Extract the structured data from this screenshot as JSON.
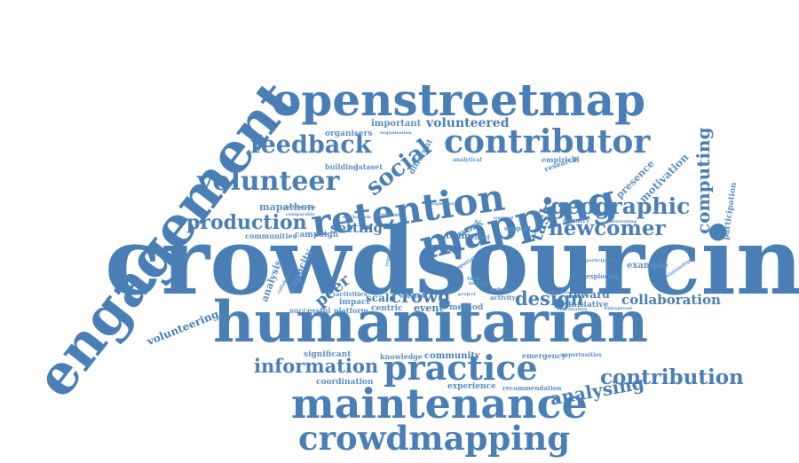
{
  "colors": {
    "word": "#4a7fb5",
    "word_light": "#5b8fc4",
    "background": "#ffffff"
  },
  "words": {
    "crowdsourcing": "crowdsourcing",
    "humanitarian": "humanitarian",
    "engagement": "engagement",
    "openstreetmap": "openstreetmap",
    "maintenance": "maintenance",
    "crowdmapping": "crowdmapping",
    "mapping": "mapping",
    "retention": "retention",
    "contributor": "contributor",
    "practice": "practice",
    "volunteer": "volunteer",
    "feedback": "feedback",
    "social": "social",
    "geographic": "geographic",
    "production": "production",
    "newcomer": "newcomer",
    "information": "information",
    "contribution": "contribution",
    "collaboration": "collaboration",
    "design": "design",
    "crowd": "crowd",
    "computing": "computing",
    "analysing": "analysing",
    "volunteering": "volunteering",
    "peer": "peer",
    "setting": "setting",
    "task": "task",
    "motivation": "motivation",
    "participation": "participation",
    "presence": "presence",
    "volunteered": "volunteered",
    "important": "important",
    "organisers": "organisers",
    "mapathon": "mapathon",
    "campaign": "campaign",
    "communities": "communities",
    "analysis": "analysis",
    "capacity": "capacity",
    "scale": "scale",
    "event": "event",
    "method": "method",
    "reward": "reward",
    "initiative": "initiative",
    "example": "example",
    "centric": "centric",
    "impact": "impact",
    "platform": "platform",
    "successful": "successful",
    "significant": "significant",
    "knowledge": "knowledge",
    "community": "community",
    "coordination": "coordination",
    "experience": "experience",
    "recommendation": "recommendation",
    "emergency": "emergency",
    "opportunities": "opportunities",
    "different": "different",
    "building": "building",
    "dataset": "dataset",
    "research": "research",
    "empirical": "empirical",
    "analytical": "analytical",
    "studies": "studies",
    "activities": "activities",
    "work": "work",
    "team": "team",
    "private": "private",
    "activity": "activity",
    "support": "support",
    "exploring": "exploring",
    "country": "country",
    "progress": "progress",
    "mechanism": "mechanism",
    "performance": "performance",
    "comparable": "comparable",
    "interesting": "interesting",
    "organisation": "organisation",
    "collaborative": "collaborative",
    "widespread": "widespread",
    "reactivation": "reactivation",
    "difference": "difference",
    "relationship": "relationship",
    "participant": "participant",
    "spatial": "spatial",
    "term": "term",
    "response": "response",
    "expertise": "expertise",
    "sourced": "sourced",
    "effect": "effect",
    "finding": "finding",
    "project": "project"
  }
}
